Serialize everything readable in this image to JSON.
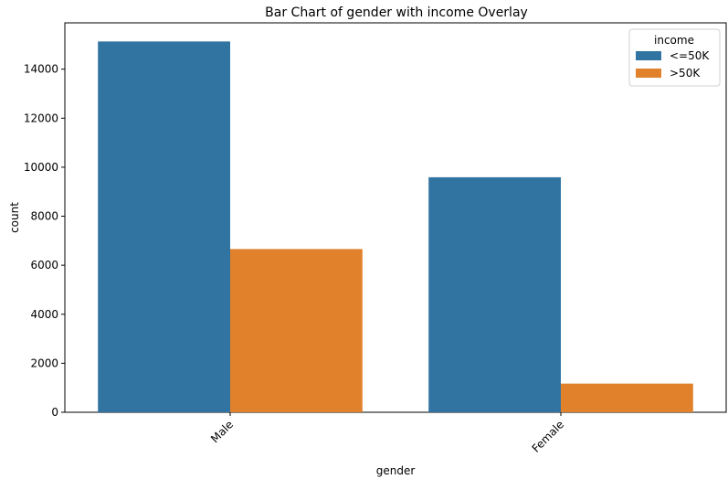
{
  "chart_data": {
    "type": "bar",
    "title": "Bar Chart of gender with income Overlay",
    "xlabel": "gender",
    "ylabel": "count",
    "categories": [
      "Male",
      "Female"
    ],
    "series": [
      {
        "name": "<=50K",
        "values": [
          15130,
          9590
        ],
        "color": "#3274a1"
      },
      {
        "name": ">50K",
        "values": [
          6660,
          1170
        ],
        "color": "#e1812c"
      }
    ],
    "ylim": [
      0,
      15890
    ],
    "yticks": [
      0,
      2000,
      4000,
      6000,
      8000,
      10000,
      12000,
      14000
    ],
    "ytick_labels": [
      "0",
      "2000",
      "4000",
      "6000",
      "8000",
      "10000",
      "12000",
      "14000"
    ],
    "legend": {
      "title": "income",
      "placement": "top-right"
    },
    "grid": false
  }
}
